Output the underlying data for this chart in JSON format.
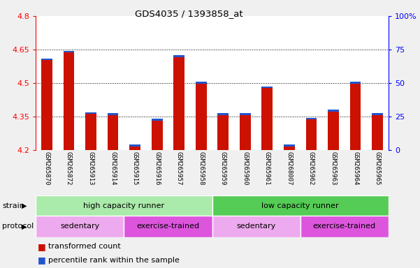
{
  "title": "GDS4035 / 1393858_at",
  "samples": [
    "GSM265870",
    "GSM265872",
    "GSM265913",
    "GSM265914",
    "GSM265915",
    "GSM265916",
    "GSM265957",
    "GSM265958",
    "GSM265959",
    "GSM265960",
    "GSM265961",
    "GSM268007",
    "GSM265962",
    "GSM265963",
    "GSM265964",
    "GSM265965"
  ],
  "red_values": [
    4.61,
    4.645,
    4.37,
    4.365,
    4.225,
    4.34,
    4.625,
    4.505,
    4.365,
    4.365,
    4.485,
    4.225,
    4.345,
    4.38,
    4.505,
    4.365
  ],
  "blue_heights": [
    0.008,
    0.008,
    0.008,
    0.008,
    0.008,
    0.008,
    0.008,
    0.008,
    0.008,
    0.008,
    0.008,
    0.008,
    0.008,
    0.008,
    0.008,
    0.008
  ],
  "ymin": 4.2,
  "ymax": 4.8,
  "yticks": [
    4.2,
    4.35,
    4.5,
    4.65,
    4.8
  ],
  "right_yticks": [
    0,
    25,
    50,
    75,
    100
  ],
  "bar_color": "#cc1100",
  "blue_color": "#2255cc",
  "bg_color": "#f0f0f0",
  "plot_bg": "#ffffff",
  "xlabels_bg": "#d4d4d4",
  "strain_groups": [
    {
      "label": "high capacity runner",
      "start": 0,
      "end": 8,
      "color": "#aaeaaa"
    },
    {
      "label": "low capacity runner",
      "start": 8,
      "end": 16,
      "color": "#55cc55"
    }
  ],
  "protocol_groups": [
    {
      "label": "sedentary",
      "start": 0,
      "end": 4,
      "color": "#eeaaee"
    },
    {
      "label": "exercise-trained",
      "start": 4,
      "end": 8,
      "color": "#dd55dd"
    },
    {
      "label": "sedentary",
      "start": 8,
      "end": 12,
      "color": "#eeaaee"
    },
    {
      "label": "exercise-trained",
      "start": 12,
      "end": 16,
      "color": "#dd55dd"
    }
  ],
  "legend_items": [
    {
      "label": "transformed count",
      "color": "#cc1100"
    },
    {
      "label": "percentile rank within the sample",
      "color": "#2255cc"
    }
  ],
  "bar_width": 0.5
}
